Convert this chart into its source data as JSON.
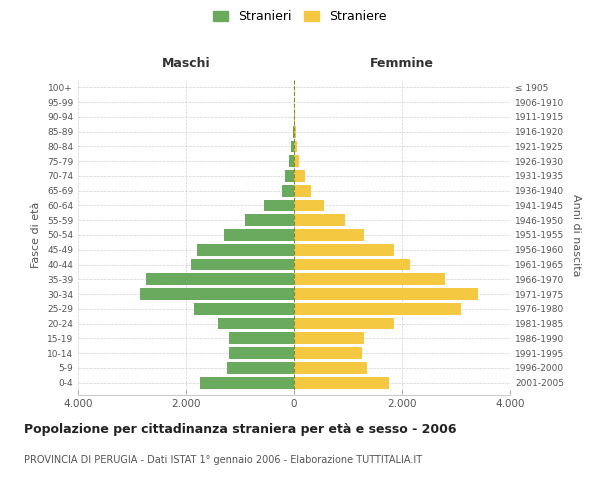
{
  "age_groups": [
    "0-4",
    "5-9",
    "10-14",
    "15-19",
    "20-24",
    "25-29",
    "30-34",
    "35-39",
    "40-44",
    "45-49",
    "50-54",
    "55-59",
    "60-64",
    "65-69",
    "70-74",
    "75-79",
    "80-84",
    "85-89",
    "90-94",
    "95-99",
    "100+"
  ],
  "birth_years": [
    "2001-2005",
    "1996-2000",
    "1991-1995",
    "1986-1990",
    "1981-1985",
    "1976-1980",
    "1971-1975",
    "1966-1970",
    "1961-1965",
    "1956-1960",
    "1951-1955",
    "1946-1950",
    "1941-1945",
    "1936-1940",
    "1931-1935",
    "1926-1930",
    "1921-1925",
    "1916-1920",
    "1911-1915",
    "1906-1910",
    "≤ 1905"
  ],
  "maschi": [
    1750,
    1250,
    1200,
    1200,
    1400,
    1850,
    2850,
    2750,
    1900,
    1800,
    1300,
    900,
    550,
    230,
    160,
    90,
    50,
    20,
    8,
    3,
    1
  ],
  "femmine": [
    1750,
    1350,
    1250,
    1300,
    1850,
    3100,
    3400,
    2800,
    2150,
    1850,
    1300,
    950,
    550,
    320,
    200,
    100,
    55,
    30,
    10,
    4,
    1
  ],
  "color_maschi": "#6aaa5e",
  "color_femmine": "#f5c842",
  "background_color": "#ffffff",
  "grid_color": "#d0d0d0",
  "title": "Popolazione per cittadinanza straniera per età e sesso - 2006",
  "subtitle": "PROVINCIA DI PERUGIA - Dati ISTAT 1° gennaio 2006 - Elaborazione TUTTITALIA.IT",
  "xlabel_left": "Maschi",
  "xlabel_right": "Femmine",
  "ylabel_left": "Fasce di età",
  "ylabel_right": "Anni di nascita",
  "legend_stranieri": "Stranieri",
  "legend_straniere": "Straniere",
  "xlim": 4000,
  "xticks": [
    -4000,
    -2000,
    0,
    2000,
    4000
  ],
  "xticklabels": [
    "4.000",
    "2.000",
    "0",
    "2.000",
    "4.000"
  ]
}
